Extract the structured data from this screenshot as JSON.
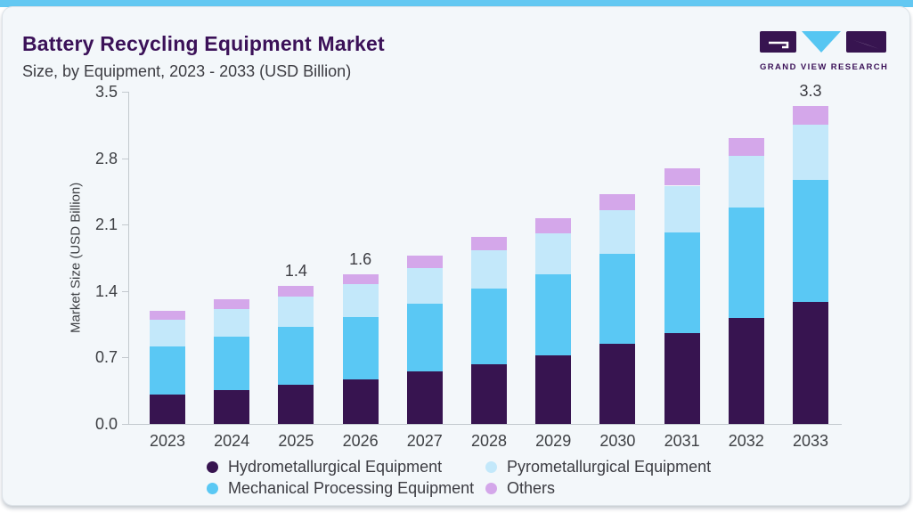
{
  "header": {
    "title": "Battery Recycling Equipment Market",
    "subtitle": "Size, by Equipment, 2023 - 2033 (USD Billion)",
    "logo_text": "GRAND VIEW RESEARCH"
  },
  "colors": {
    "accent_strip": "#63c8f2",
    "title_purple": "#3b1158",
    "card_bg": "#f3f7fa",
    "card_border": "#dde3e8",
    "axis_line": "#c3c9ce",
    "text": "#3c3c42",
    "logo_dark": "#371450",
    "logo_blue": "#56c6f2"
  },
  "chart_data": {
    "type": "bar",
    "stacked": true,
    "title": "Battery Recycling Equipment Market Size, by Equipment, 2023 - 2033 (USD Billion)",
    "xlabel": "",
    "ylabel": "Market Size (USD Billion)",
    "ylim": [
      0,
      3.5
    ],
    "y_ticks": [
      "0.0",
      "0.7",
      "1.4",
      "2.1",
      "2.8",
      "3.5"
    ],
    "grid": false,
    "legend_position": "bottom",
    "categories": [
      "2023",
      "2024",
      "2025",
      "2026",
      "2027",
      "2028",
      "2029",
      "2030",
      "2031",
      "2032",
      "2033"
    ],
    "series": [
      {
        "name": "Hydrometallurgical Equipment",
        "color": "#371450",
        "values": [
          0.31,
          0.36,
          0.41,
          0.47,
          0.55,
          0.63,
          0.72,
          0.84,
          0.96,
          1.12,
          1.29
        ]
      },
      {
        "name": "Mechanical Processing Equipment",
        "color": "#5ac8f4",
        "values": [
          0.51,
          0.56,
          0.61,
          0.66,
          0.72,
          0.8,
          0.86,
          0.95,
          1.06,
          1.16,
          1.28
        ]
      },
      {
        "name": "Pyrometallurgical Equipment",
        "color": "#c3e8fa",
        "values": [
          0.28,
          0.29,
          0.32,
          0.34,
          0.37,
          0.4,
          0.43,
          0.46,
          0.49,
          0.54,
          0.58
        ]
      },
      {
        "name": "Others",
        "color": "#d4a7ea",
        "values": [
          0.09,
          0.1,
          0.11,
          0.11,
          0.13,
          0.14,
          0.16,
          0.17,
          0.18,
          0.19,
          0.2
        ]
      }
    ],
    "bar_total_labels": [
      {
        "category": "2025",
        "text": "1.4"
      },
      {
        "category": "2026",
        "text": "1.6"
      },
      {
        "category": "2033",
        "text": "3.3"
      }
    ],
    "legend": [
      {
        "label": "Hydrometallurgical Equipment",
        "color": "#371450"
      },
      {
        "label": "Pyrometallurgical Equipment",
        "color": "#c3e8fa"
      },
      {
        "label": "Mechanical Processing Equipment",
        "color": "#5ac8f4"
      },
      {
        "label": "Others",
        "color": "#d4a7ea"
      }
    ]
  }
}
